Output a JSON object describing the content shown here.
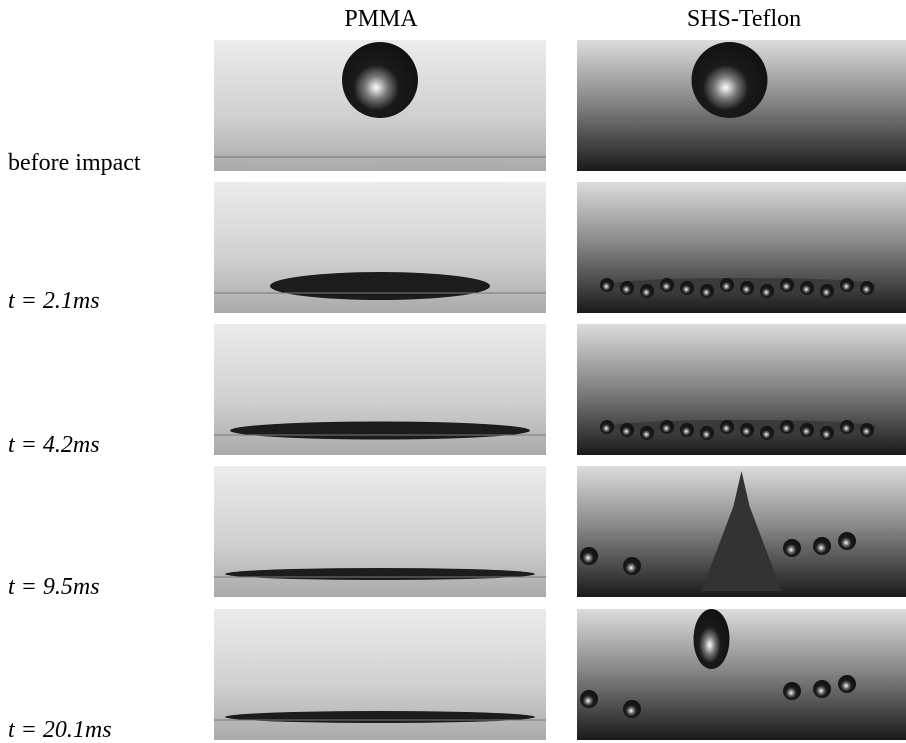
{
  "figure": {
    "columns": [
      "PMMA",
      "SHS-Teflon"
    ],
    "rows": [
      "before impact",
      "t = 2.1ms",
      "t = 4.2ms",
      "t = 9.5ms",
      "t = 20.1ms"
    ]
  }
}
